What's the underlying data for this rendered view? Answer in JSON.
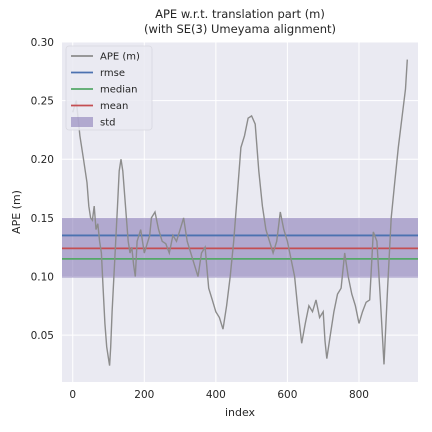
{
  "chart_data": {
    "type": "line",
    "title": "APE w.r.t. translation part (m)",
    "subtitle": "(with SE(3) Umeyama alignment)",
    "xlabel": "index",
    "ylabel": "APE (m)",
    "xlim": [
      -30,
      965
    ],
    "ylim": [
      0.01,
      0.3
    ],
    "xticks": [
      0,
      200,
      400,
      600,
      800
    ],
    "yticks": [
      0.05,
      0.1,
      0.15,
      0.2,
      0.25,
      0.3
    ],
    "ytick_labels": [
      "0.05",
      "0.10",
      "0.15",
      "0.20",
      "0.25",
      "0.30"
    ],
    "grid": true,
    "legend_position": "top-left",
    "series": [
      {
        "name": "APE (m)",
        "color": "#8c8c8c",
        "kind": "line",
        "x": [
          0,
          10,
          20,
          30,
          40,
          45,
          50,
          55,
          60,
          65,
          70,
          75,
          80,
          85,
          90,
          95,
          100,
          103,
          106,
          110,
          115,
          120,
          125,
          130,
          135,
          140,
          145,
          150,
          155,
          160,
          165,
          170,
          175,
          180,
          190,
          200,
          205,
          210,
          215,
          220,
          230,
          240,
          250,
          260,
          270,
          280,
          290,
          300,
          305,
          310,
          320,
          330,
          340,
          350,
          360,
          370,
          380,
          390,
          400,
          410,
          420,
          430,
          440,
          450,
          460,
          470,
          480,
          490,
          500,
          510,
          520,
          530,
          540,
          550,
          560,
          570,
          580,
          590,
          600,
          610,
          620,
          630,
          640,
          650,
          660,
          670,
          680,
          690,
          700,
          705,
          710,
          720,
          730,
          740,
          750,
          760,
          770,
          780,
          790,
          800,
          810,
          820,
          830,
          840,
          850,
          860,
          870,
          880,
          890,
          900,
          910,
          920,
          930,
          935
        ],
        "y": [
          0.24,
          0.25,
          0.22,
          0.2,
          0.18,
          0.16,
          0.15,
          0.148,
          0.16,
          0.14,
          0.145,
          0.13,
          0.12,
          0.09,
          0.06,
          0.04,
          0.03,
          0.024,
          0.04,
          0.07,
          0.1,
          0.13,
          0.16,
          0.19,
          0.2,
          0.19,
          0.17,
          0.15,
          0.13,
          0.12,
          0.125,
          0.11,
          0.1,
          0.13,
          0.14,
          0.12,
          0.125,
          0.13,
          0.135,
          0.15,
          0.155,
          0.14,
          0.13,
          0.128,
          0.12,
          0.135,
          0.13,
          0.14,
          0.145,
          0.15,
          0.13,
          0.12,
          0.11,
          0.1,
          0.12,
          0.125,
          0.09,
          0.08,
          0.07,
          0.065,
          0.055,
          0.075,
          0.1,
          0.13,
          0.17,
          0.21,
          0.22,
          0.235,
          0.237,
          0.23,
          0.19,
          0.16,
          0.14,
          0.13,
          0.12,
          0.13,
          0.155,
          0.14,
          0.13,
          0.115,
          0.1,
          0.07,
          0.043,
          0.06,
          0.075,
          0.07,
          0.08,
          0.065,
          0.07,
          0.045,
          0.03,
          0.05,
          0.07,
          0.085,
          0.09,
          0.12,
          0.1,
          0.085,
          0.075,
          0.06,
          0.07,
          0.078,
          0.08,
          0.138,
          0.13,
          0.08,
          0.025,
          0.09,
          0.15,
          0.18,
          0.21,
          0.235,
          0.26,
          0.285
        ]
      },
      {
        "name": "rmse",
        "color": "#4c72b0",
        "kind": "hline",
        "value": 0.135
      },
      {
        "name": "median",
        "color": "#55a868",
        "kind": "hline",
        "value": 0.115
      },
      {
        "name": "mean",
        "color": "#c44e52",
        "kind": "hline",
        "value": 0.124
      },
      {
        "name": "std",
        "color": "#8172b2",
        "kind": "band",
        "range": [
          0.099,
          0.15
        ]
      }
    ]
  }
}
